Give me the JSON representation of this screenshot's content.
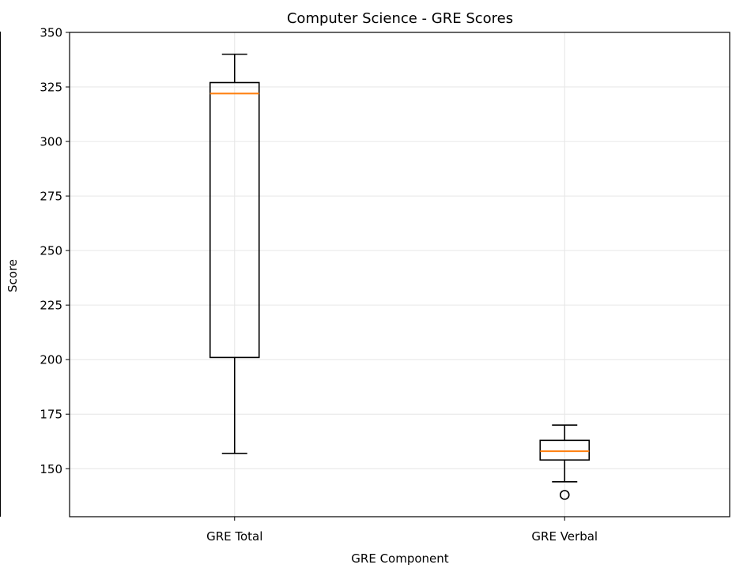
{
  "chart_data": {
    "type": "box",
    "title": "Computer Science - GRE Scores",
    "xlabel": "GRE Component",
    "ylabel": "Score",
    "ylim": [
      128,
      350
    ],
    "yticks": [
      150,
      175,
      200,
      225,
      250,
      275,
      300,
      325,
      350
    ],
    "grid": true,
    "categories": [
      "GRE Total",
      "GRE Verbal"
    ],
    "boxes": [
      {
        "label": "GRE Total",
        "whisker_low": 157,
        "q1": 201,
        "median": 322,
        "q3": 327,
        "whisker_high": 340,
        "outliers": []
      },
      {
        "label": "GRE Verbal",
        "whisker_low": 144,
        "q1": 154,
        "median": 158,
        "q3": 163,
        "whisker_high": 170,
        "outliers": [
          138
        ]
      }
    ]
  },
  "colors": {
    "box": "#000000",
    "median": "#ff7f0e",
    "grid": "#e6e6e6"
  }
}
